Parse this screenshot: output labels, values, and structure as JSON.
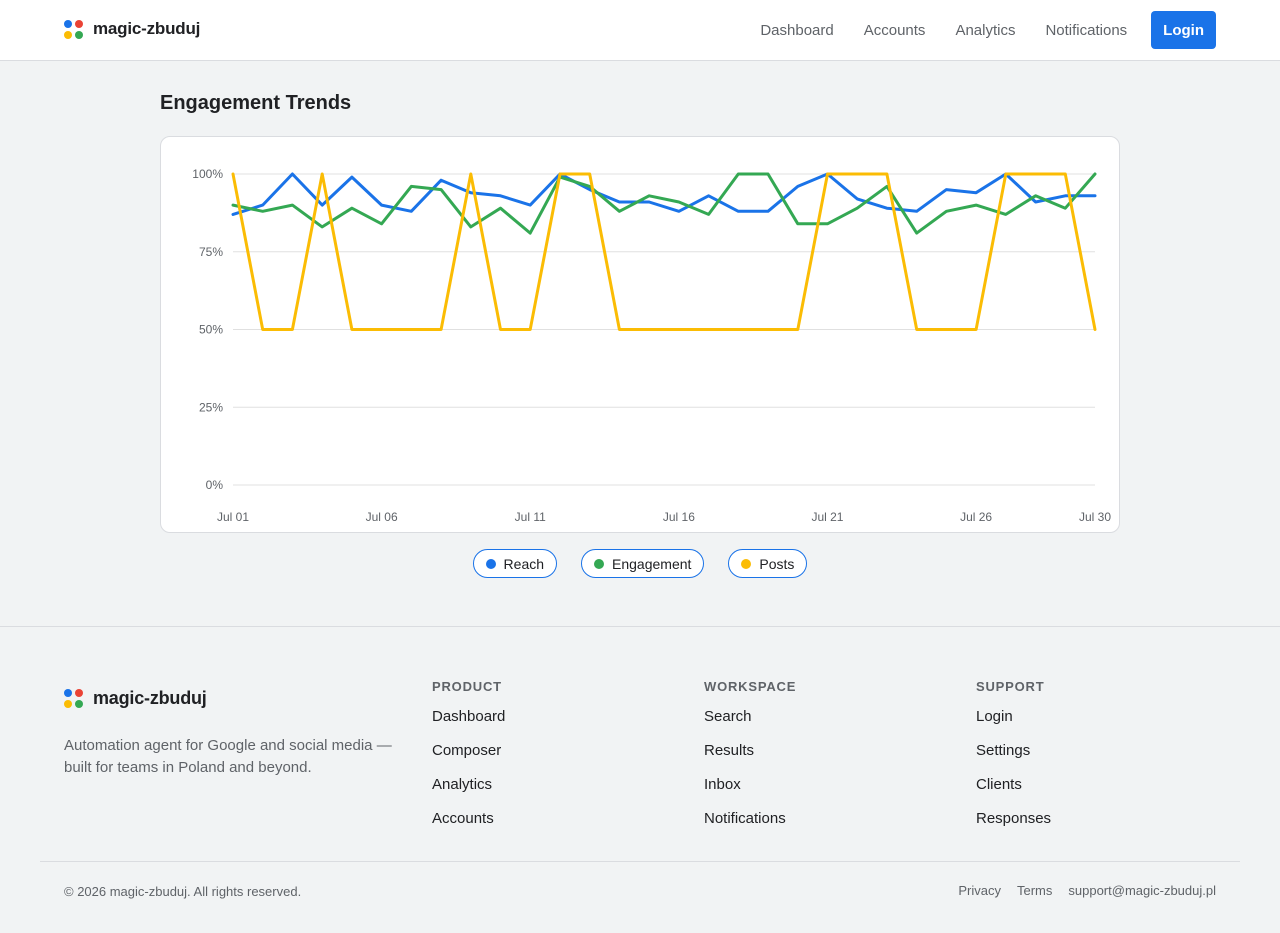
{
  "header": {
    "brand": "magic-zbuduj",
    "nav": [
      "Dashboard",
      "Accounts",
      "Analytics",
      "Notifications"
    ],
    "login_label": "Login"
  },
  "brand_colors": [
    "#1a73e8",
    "#ea4335",
    "#fbbc04",
    "#34a853"
  ],
  "main": {
    "title": "Engagement Trends"
  },
  "chart_data": {
    "type": "line",
    "title": "",
    "xlabel": "",
    "ylabel": "",
    "ylim": [
      0,
      100
    ],
    "yticks": [
      "0%",
      "25%",
      "50%",
      "75%",
      "100%"
    ],
    "xtick_labels": [
      "Jul 01",
      "Jul 06",
      "Jul 11",
      "Jul 16",
      "Jul 21",
      "Jul 26",
      "Jul 30"
    ],
    "xtick_days": [
      1,
      6,
      11,
      16,
      21,
      26,
      30
    ],
    "x": [
      1,
      2,
      3,
      4,
      5,
      6,
      7,
      8,
      9,
      10,
      11,
      12,
      13,
      14,
      15,
      16,
      17,
      18,
      19,
      20,
      21,
      22,
      23,
      24,
      25,
      26,
      27,
      28,
      29,
      30
    ],
    "grid": true,
    "series": [
      {
        "name": "Reach",
        "color": "#1a73e8",
        "values": [
          87,
          90,
          100,
          90,
          99,
          90,
          88,
          98,
          94,
          93,
          90,
          100,
          95,
          91,
          91,
          88,
          93,
          88,
          88,
          96,
          100,
          92,
          89,
          88,
          95,
          94,
          100,
          91,
          93,
          93
        ]
      },
      {
        "name": "Engagement",
        "color": "#34a853",
        "values": [
          90,
          88,
          90,
          83,
          89,
          84,
          96,
          95,
          83,
          89,
          81,
          99,
          96,
          88,
          93,
          91,
          87,
          100,
          100,
          84,
          84,
          89,
          96,
          81,
          88,
          90,
          87,
          93,
          89,
          100
        ]
      },
      {
        "name": "Posts",
        "color": "#fbbc04",
        "values": [
          100,
          50,
          50,
          100,
          50,
          50,
          50,
          50,
          100,
          50,
          50,
          100,
          100,
          50,
          50,
          50,
          50,
          50,
          50,
          50,
          100,
          100,
          100,
          50,
          50,
          50,
          100,
          100,
          100,
          50
        ]
      }
    ]
  },
  "legend": [
    "Reach",
    "Engagement",
    "Posts"
  ],
  "footer": {
    "brand": "magic-zbuduj",
    "tagline": "Automation agent for Google and social media — built for teams in Poland and beyond.",
    "columns": [
      {
        "title": "PRODUCT",
        "links": [
          "Dashboard",
          "Composer",
          "Analytics",
          "Accounts"
        ]
      },
      {
        "title": "WORKSPACE",
        "links": [
          "Search",
          "Results",
          "Inbox",
          "Notifications"
        ]
      },
      {
        "title": "SUPPORT",
        "links": [
          "Login",
          "Settings",
          "Clients",
          "Responses"
        ]
      }
    ],
    "copyright": "© 2026 magic-zbuduj. All rights reserved.",
    "links": [
      "Privacy",
      "Terms",
      "support@magic-zbuduj.pl"
    ]
  }
}
